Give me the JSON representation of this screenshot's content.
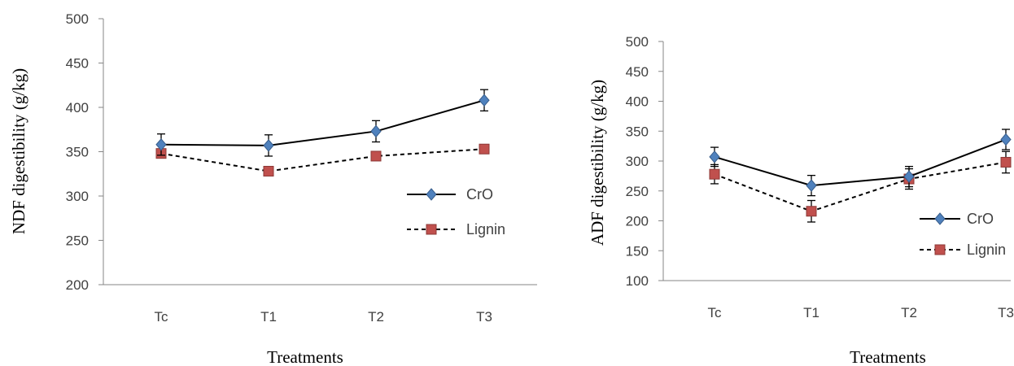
{
  "chart_data": [
    {
      "type": "line",
      "title": "",
      "xlabel": "Treatments",
      "ylabel": "NDF digestibility (g/kg)",
      "categories": [
        "Tc",
        "T1",
        "T2",
        "T3"
      ],
      "ylim": [
        200,
        500
      ],
      "yticks": [
        200,
        250,
        300,
        350,
        400,
        450,
        500
      ],
      "grid": false,
      "legend_position": "right",
      "series": [
        {
          "name": "CrO",
          "values": [
            358,
            357,
            373,
            408
          ],
          "errors": [
            12,
            12,
            12,
            12
          ],
          "color": "#4f81bd",
          "marker": "diamond",
          "line_style": "solid"
        },
        {
          "name": "Lignin",
          "values": [
            348,
            328,
            345,
            353
          ],
          "errors": [
            0,
            0,
            0,
            0
          ],
          "color": "#c0504d",
          "marker": "square",
          "line_style": "dashed"
        }
      ]
    },
    {
      "type": "line",
      "title": "",
      "xlabel": "Treatments",
      "ylabel": "ADF digestibility (g/kg)",
      "categories": [
        "Tc",
        "T1",
        "T2",
        "T3"
      ],
      "ylim": [
        100,
        500
      ],
      "yticks": [
        100,
        150,
        200,
        250,
        300,
        350,
        400,
        450,
        500
      ],
      "grid": false,
      "legend_position": "right",
      "series": [
        {
          "name": "CrO",
          "values": [
            307,
            259,
            274,
            336
          ],
          "errors": [
            16,
            17,
            17,
            17
          ],
          "color": "#4f81bd",
          "marker": "diamond",
          "line_style": "solid"
        },
        {
          "name": "Lignin",
          "values": [
            278,
            216,
            270,
            298
          ],
          "errors": [
            16,
            18,
            17,
            18
          ],
          "color": "#c0504d",
          "marker": "square",
          "line_style": "dashed"
        }
      ]
    }
  ]
}
